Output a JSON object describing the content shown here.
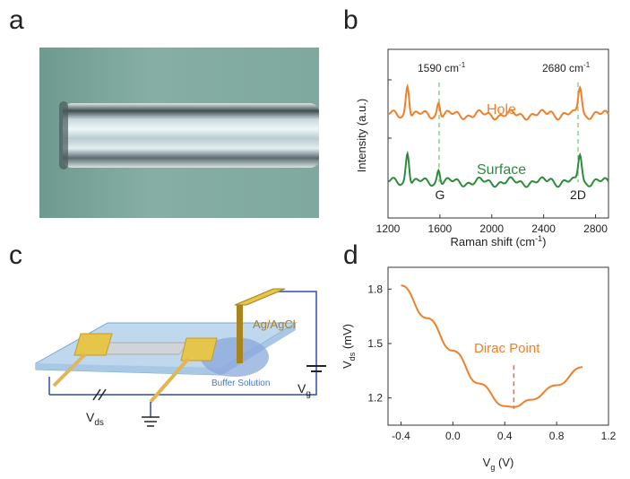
{
  "panels": {
    "a": {
      "letter": "a"
    },
    "b": {
      "letter": "b"
    },
    "c": {
      "letter": "c"
    },
    "d": {
      "letter": "d"
    }
  },
  "colors": {
    "orange": "#f07f2a",
    "green": "#2e8b3d",
    "dashed_green": "#8fd08f",
    "circuit_blue": "#2d4bb0",
    "gold": "#c89a20",
    "substrate": "#bfd8ee"
  },
  "schematic": {
    "electrode_label": "Ag/AgCl",
    "solution_label": "Buffer Solution",
    "vds_label": "V",
    "vds_sub": "ds",
    "vg_label": "V",
    "vg_sub": "g"
  },
  "chart_data": [
    {
      "type": "line",
      "panel": "b",
      "xlabel": "Raman shift (cm",
      "xlabel_sup": "-1",
      "xlabel_end": ")",
      "ylabel": "Intensity (a.u.)",
      "xlim": [
        1200,
        2900
      ],
      "xticks": [
        "1200",
        "1600",
        "2000",
        "2400",
        "2800"
      ],
      "annotations": {
        "peak1": "1590 cm",
        "peak1_sup": "-1",
        "peak2": "2680 cm",
        "peak2_sup": "-1",
        "g": "G",
        "d2": "2D"
      },
      "series": [
        {
          "name": "Hole",
          "color": "#f07f2a"
        },
        {
          "name": "Surface",
          "color": "#2e8b3d"
        }
      ]
    },
    {
      "type": "line",
      "panel": "d",
      "xlabel": "V",
      "xlabel_sub": "g",
      "xlabel_end": " (V)",
      "ylabel": "V",
      "ylabel_sub": "ds",
      "ylabel_end": " (mV)",
      "xlim": [
        -0.5,
        1.2
      ],
      "ylim": [
        1.05,
        1.92
      ],
      "xticks": [
        "-0.4",
        "0.0",
        "0.4",
        "0.8",
        "1.2"
      ],
      "yticks": [
        "1.2",
        "1.5",
        "1.8"
      ],
      "annotation": "Dirac Point",
      "dirac_x": 0.47,
      "x": [
        -0.4,
        -0.2,
        0.0,
        0.2,
        0.4,
        0.47,
        0.6,
        0.8,
        1.0
      ],
      "y": [
        1.82,
        1.64,
        1.46,
        1.28,
        1.155,
        1.15,
        1.19,
        1.27,
        1.37
      ]
    }
  ]
}
